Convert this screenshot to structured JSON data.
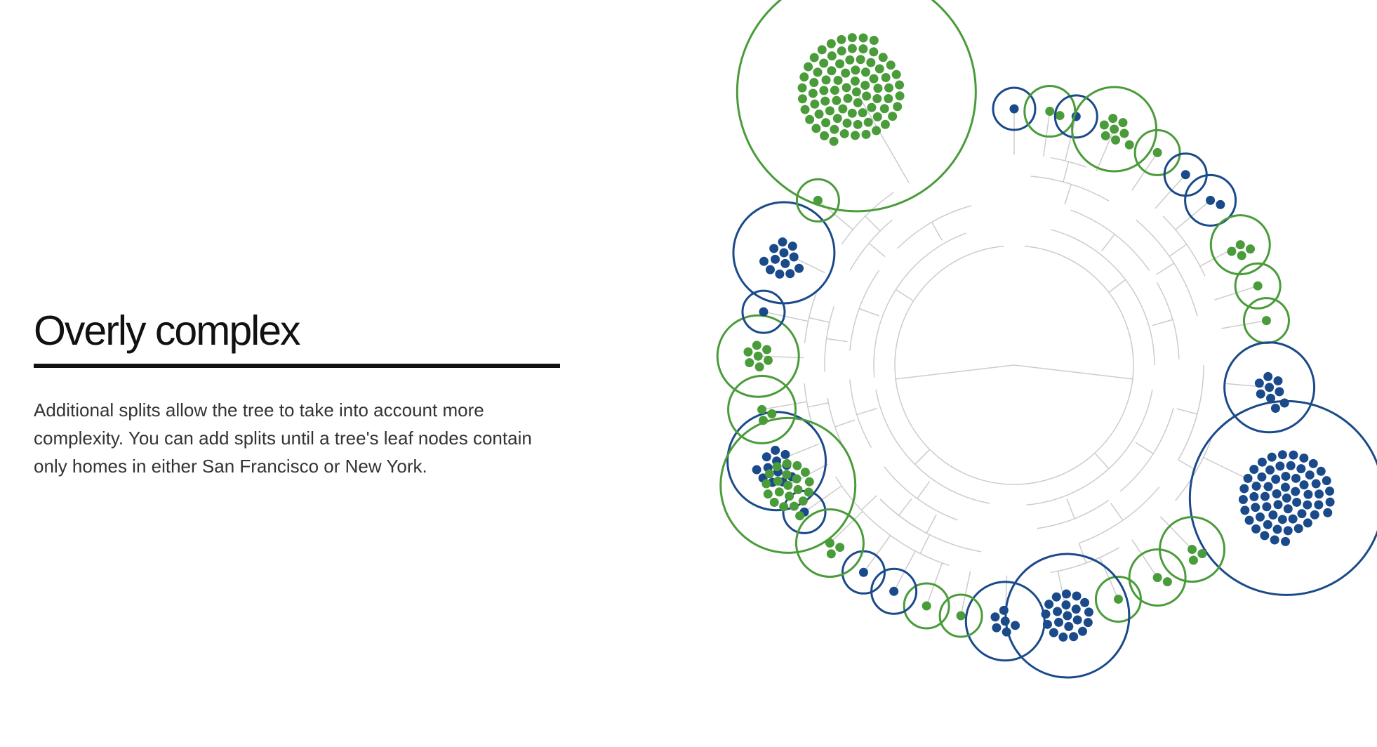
{
  "heading": {
    "title": "Overly complex",
    "description": "Additional splits allow the tree to take into account more complexity. You can add splits until a tree's leaf nodes contain only homes in either San Francisco or New York."
  },
  "colors": {
    "sf_green": "#4a9b3a",
    "ny_blue": "#1a4a8a",
    "branch_gray": "#cccccc",
    "text": "#333333",
    "title": "#111111"
  },
  "leaf_nodes": [
    {
      "city_color": "ny_blue",
      "homes": 1
    },
    {
      "city_color": "ny_blue",
      "homes": 12
    },
    {
      "city_color": "sf_green",
      "homes": 3
    },
    {
      "city_color": "sf_green",
      "homes": 7
    },
    {
      "city_color": "ny_blue",
      "homes": 1
    },
    {
      "city_color": "ny_blue",
      "homes": 12
    },
    {
      "city_color": "sf_green",
      "homes": 1
    },
    {
      "city_color": "sf_green",
      "homes": 80
    },
    {
      "city_color": "ny_blue",
      "homes": 1
    },
    {
      "city_color": "sf_green",
      "homes": 2
    },
    {
      "city_color": "ny_blue",
      "homes": 1
    },
    {
      "city_color": "sf_green",
      "homes": 8
    },
    {
      "city_color": "sf_green",
      "homes": 1
    },
    {
      "city_color": "ny_blue",
      "homes": 1
    },
    {
      "city_color": "ny_blue",
      "homes": 2
    },
    {
      "city_color": "sf_green",
      "homes": 4
    },
    {
      "city_color": "sf_green",
      "homes": 1
    },
    {
      "city_color": "sf_green",
      "homes": 1
    },
    {
      "city_color": "ny_blue",
      "homes": 9
    },
    {
      "city_color": "ny_blue",
      "homes": 60
    },
    {
      "city_color": "sf_green",
      "homes": 3
    },
    {
      "city_color": "sf_green",
      "homes": 2
    },
    {
      "city_color": "sf_green",
      "homes": 1
    },
    {
      "city_color": "ny_blue",
      "homes": 20
    },
    {
      "city_color": "ny_blue",
      "homes": 6
    },
    {
      "city_color": "sf_green",
      "homes": 1
    },
    {
      "city_color": "sf_green",
      "homes": 1
    },
    {
      "city_color": "ny_blue",
      "homes": 1
    },
    {
      "city_color": "ny_blue",
      "homes": 1
    },
    {
      "city_color": "sf_green",
      "homes": 3
    },
    {
      "city_color": "sf_green",
      "homes": 21
    }
  ]
}
